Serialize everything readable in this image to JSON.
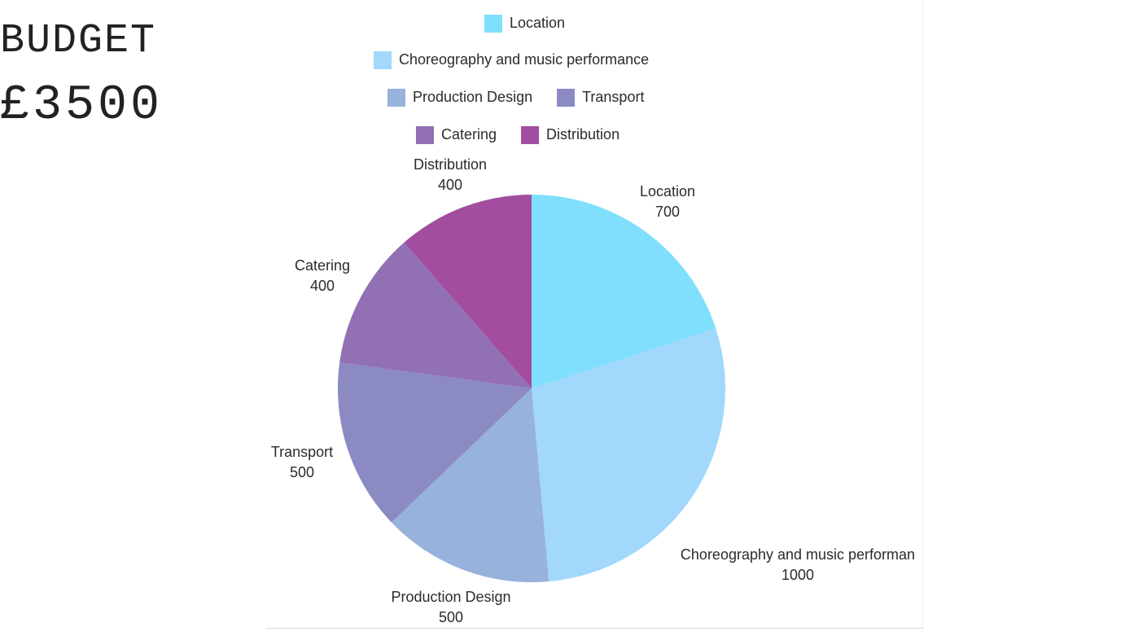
{
  "budget": {
    "label": "BUDGET",
    "amount": "£3500"
  },
  "chart_data": {
    "type": "pie",
    "categories": [
      "Location",
      "Choreography and music performance",
      "Production Design",
      "Transport",
      "Catering",
      "Distribution"
    ],
    "values": [
      700,
      1000,
      500,
      500,
      400,
      400
    ],
    "slice_labels": [
      "Location",
      "Choreography and music performan",
      "Production Design",
      "Transport",
      "Catering",
      "Distribution"
    ],
    "colors": [
      "#7fdffc",
      "#a1d8fb",
      "#97b2db",
      "#8b8ac3",
      "#9270b4",
      "#a24d9f"
    ],
    "legend": "top",
    "start_angle": "12 o'clock, clockwise"
  }
}
